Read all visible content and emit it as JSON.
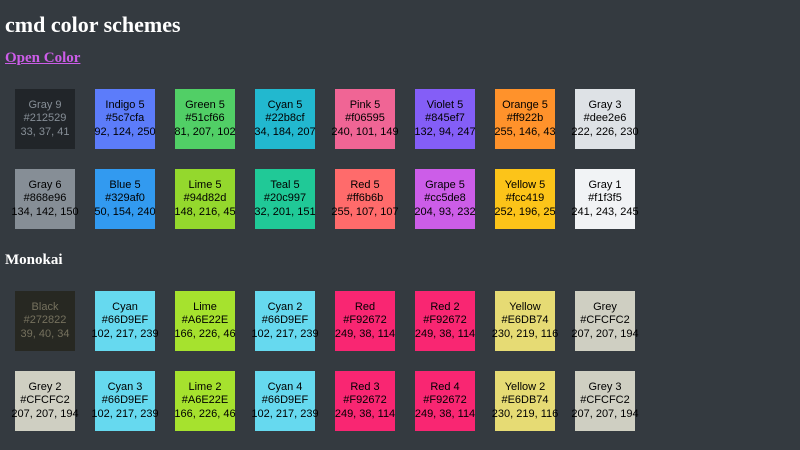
{
  "page": {
    "title": "cmd color schemes"
  },
  "open_color": {
    "link_text": "Open Color",
    "swatches": [
      {
        "name": "Gray 9",
        "hex": "#212529",
        "rgb": "33, 37, 41",
        "bg": "#212529",
        "fg": "#868e96"
      },
      {
        "name": "Indigo 5",
        "hex": "#5c7cfa",
        "rgb": "92, 124, 250",
        "bg": "#5c7cfa",
        "fg": "#000000"
      },
      {
        "name": "Green 5",
        "hex": "#51cf66",
        "rgb": "81, 207, 102",
        "bg": "#51cf66",
        "fg": "#000000"
      },
      {
        "name": "Cyan 5",
        "hex": "#22b8cf",
        "rgb": "34, 184, 207",
        "bg": "#22b8cf",
        "fg": "#000000"
      },
      {
        "name": "Pink 5",
        "hex": "#f06595",
        "rgb": "240, 101, 149",
        "bg": "#f06595",
        "fg": "#000000"
      },
      {
        "name": "Violet 5",
        "hex": "#845ef7",
        "rgb": "132, 94, 247",
        "bg": "#845ef7",
        "fg": "#000000"
      },
      {
        "name": "Orange 5",
        "hex": "#ff922b",
        "rgb": "255, 146, 43",
        "bg": "#ff922b",
        "fg": "#000000"
      },
      {
        "name": "Gray 3",
        "hex": "#dee2e6",
        "rgb": "222, 226, 230",
        "bg": "#dee2e6",
        "fg": "#000000"
      },
      {
        "name": "Gray 6",
        "hex": "#868e96",
        "rgb": "134, 142, 150",
        "bg": "#868e96",
        "fg": "#000000"
      },
      {
        "name": "Blue 5",
        "hex": "#329af0",
        "rgb": "50, 154, 240",
        "bg": "#329af0",
        "fg": "#000000"
      },
      {
        "name": "Lime 5",
        "hex": "#94d82d",
        "rgb": "148, 216, 45",
        "bg": "#94d82d",
        "fg": "#000000"
      },
      {
        "name": "Teal 5",
        "hex": "#20c997",
        "rgb": "32, 201, 151",
        "bg": "#20c997",
        "fg": "#000000"
      },
      {
        "name": "Red 5",
        "hex": "#ff6b6b",
        "rgb": "255, 107, 107",
        "bg": "#ff6b6b",
        "fg": "#000000"
      },
      {
        "name": "Grape 5",
        "hex": "#cc5de8",
        "rgb": "204, 93, 232",
        "bg": "#cc5de8",
        "fg": "#000000"
      },
      {
        "name": "Yellow 5",
        "hex": "#fcc419",
        "rgb": "252, 196, 25",
        "bg": "#fcc419",
        "fg": "#000000"
      },
      {
        "name": "Gray 1",
        "hex": "#f1f3f5",
        "rgb": "241, 243, 245",
        "bg": "#f1f3f5",
        "fg": "#000000"
      }
    ]
  },
  "monokai": {
    "heading": "Monokai",
    "swatches": [
      {
        "name": "Black",
        "hex": "#272822",
        "rgb": "39, 40, 34",
        "bg": "#272822",
        "fg": "#75715e"
      },
      {
        "name": "Cyan",
        "hex": "#66D9EF",
        "rgb": "102, 217, 239",
        "bg": "#66d9ef",
        "fg": "#000000"
      },
      {
        "name": "Lime",
        "hex": "#A6E22E",
        "rgb": "166, 226, 46",
        "bg": "#a6e22e",
        "fg": "#000000"
      },
      {
        "name": "Cyan 2",
        "hex": "#66D9EF",
        "rgb": "102, 217, 239",
        "bg": "#66d9ef",
        "fg": "#000000"
      },
      {
        "name": "Red",
        "hex": "#F92672",
        "rgb": "249, 38, 114",
        "bg": "#f92672",
        "fg": "#000000"
      },
      {
        "name": "Red 2",
        "hex": "#F92672",
        "rgb": "249, 38, 114",
        "bg": "#f92672",
        "fg": "#000000"
      },
      {
        "name": "Yellow",
        "hex": "#E6DB74",
        "rgb": "230, 219, 116",
        "bg": "#e6db74",
        "fg": "#000000"
      },
      {
        "name": "Grey",
        "hex": "#CFCFC2",
        "rgb": "207, 207, 194",
        "bg": "#cfcfc2",
        "fg": "#000000"
      },
      {
        "name": "Grey 2",
        "hex": "#CFCFC2",
        "rgb": "207, 207, 194",
        "bg": "#cfcfc2",
        "fg": "#000000"
      },
      {
        "name": "Cyan 3",
        "hex": "#66D9EF",
        "rgb": "102, 217, 239",
        "bg": "#66d9ef",
        "fg": "#000000"
      },
      {
        "name": "Lime 2",
        "hex": "#A6E22E",
        "rgb": "166, 226, 46",
        "bg": "#a6e22e",
        "fg": "#000000"
      },
      {
        "name": "Cyan 4",
        "hex": "#66D9EF",
        "rgb": "102, 217, 239",
        "bg": "#66d9ef",
        "fg": "#000000"
      },
      {
        "name": "Red 3",
        "hex": "#F92672",
        "rgb": "249, 38, 114",
        "bg": "#f92672",
        "fg": "#000000"
      },
      {
        "name": "Red 4",
        "hex": "#F92672",
        "rgb": "249, 38, 114",
        "bg": "#f92672",
        "fg": "#000000"
      },
      {
        "name": "Yellow 2",
        "hex": "#E6DB74",
        "rgb": "230, 219, 116",
        "bg": "#e6db74",
        "fg": "#000000"
      },
      {
        "name": "Grey 3",
        "hex": "#CFCFC2",
        "rgb": "207, 207, 194",
        "bg": "#cfcfc2",
        "fg": "#000000"
      }
    ]
  }
}
